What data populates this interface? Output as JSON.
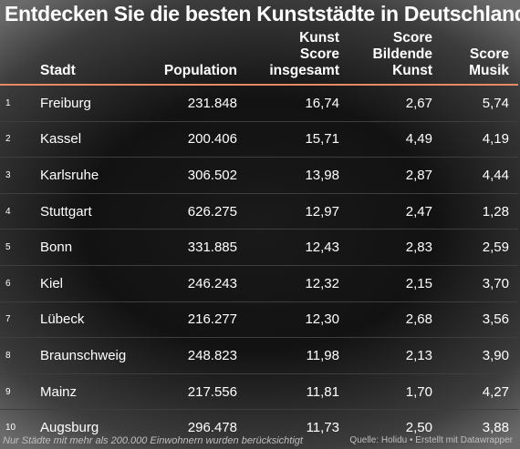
{
  "title": "Entdecken Sie die besten Kunststädte in Deutschland",
  "chart_data": {
    "type": "table",
    "title": "Entdecken Sie die besten Kunststädte in Deutschland",
    "columns": [
      {
        "key": "stadt",
        "label": "Stadt",
        "lines": [
          "Stadt"
        ]
      },
      {
        "key": "population",
        "label": "Population",
        "lines": [
          "Population"
        ]
      },
      {
        "key": "kunst_score",
        "label": "Kunst Score insgesamt",
        "lines": [
          "Kunst",
          "Score",
          "insgesamt"
        ]
      },
      {
        "key": "score_bildende_kunst",
        "label": "Score Bildende Kunst",
        "lines": [
          "Score",
          "Bildende",
          "Kunst"
        ]
      },
      {
        "key": "score_musik",
        "label": "Score Musik",
        "lines": [
          "Score",
          "Musik"
        ]
      }
    ],
    "rows": [
      {
        "rank": "1",
        "stadt": "Freiburg",
        "population": "231.848",
        "kunst_score": "16,74",
        "score_bildende_kunst": "2,67",
        "score_musik": "5,74"
      },
      {
        "rank": "2",
        "stadt": "Kassel",
        "population": "200.406",
        "kunst_score": "15,71",
        "score_bildende_kunst": "4,49",
        "score_musik": "4,19"
      },
      {
        "rank": "3",
        "stadt": "Karlsruhe",
        "population": "306.502",
        "kunst_score": "13,98",
        "score_bildende_kunst": "2,87",
        "score_musik": "4,44"
      },
      {
        "rank": "4",
        "stadt": "Stuttgart",
        "population": "626.275",
        "kunst_score": "12,97",
        "score_bildende_kunst": "2,47",
        "score_musik": "1,28"
      },
      {
        "rank": "5",
        "stadt": "Bonn",
        "population": "331.885",
        "kunst_score": "12,43",
        "score_bildende_kunst": "2,83",
        "score_musik": "2,59"
      },
      {
        "rank": "6",
        "stadt": "Kiel",
        "population": "246.243",
        "kunst_score": "12,32",
        "score_bildende_kunst": "2,15",
        "score_musik": "3,70"
      },
      {
        "rank": "7",
        "stadt": "Lübeck",
        "population": "216.277",
        "kunst_score": "12,30",
        "score_bildende_kunst": "2,68",
        "score_musik": "3,56"
      },
      {
        "rank": "8",
        "stadt": "Braunschweig",
        "population": "248.823",
        "kunst_score": "11,98",
        "score_bildende_kunst": "2,13",
        "score_musik": "3,90"
      },
      {
        "rank": "9",
        "stadt": "Mainz",
        "population": "217.556",
        "kunst_score": "11,81",
        "score_bildende_kunst": "1,70",
        "score_musik": "4,27"
      },
      {
        "rank": "10",
        "stadt": "Augsburg",
        "population": "296.478",
        "kunst_score": "11,73",
        "score_bildende_kunst": "2,50",
        "score_musik": "3,88"
      }
    ],
    "header_rule_color": "#e88a63"
  },
  "footer": {
    "note": "Nur Städte mit mehr als 200.000 Einwohnern wurden berücksichtigt",
    "source": "Quelle: Holidu • Erstellt mit Datawrapper"
  },
  "colors": {
    "text": "#ffffff",
    "accent_rule": "#e88a63",
    "row_divider": "#3e3e3e"
  }
}
